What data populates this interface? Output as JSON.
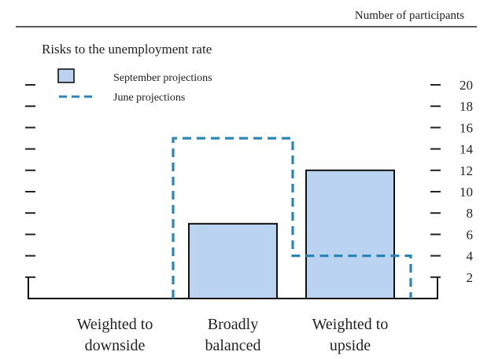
{
  "header": {
    "unit_label": "Number of participants"
  },
  "chart_data": {
    "type": "bar",
    "title": "Risks to the unemployment rate",
    "categories": [
      [
        "Weighted to",
        "downside"
      ],
      [
        "Broadly",
        "balanced"
      ],
      [
        "Weighted to",
        "upside"
      ]
    ],
    "series": [
      {
        "name": "September projections",
        "style": "filled-bar",
        "values": [
          0,
          7,
          12
        ]
      },
      {
        "name": "June projections",
        "style": "dashed-outline",
        "values": [
          0,
          15,
          4
        ]
      }
    ],
    "ylim": [
      0,
      20
    ],
    "yticks": [
      2,
      4,
      6,
      8,
      10,
      12,
      14,
      16,
      18,
      20
    ],
    "grid": false,
    "legend_position": "top-left",
    "colors": {
      "bar_fill": "#b9d3f0",
      "bar_stroke": "#111111",
      "dashed": "#2a86b8",
      "text": "#222222"
    }
  }
}
